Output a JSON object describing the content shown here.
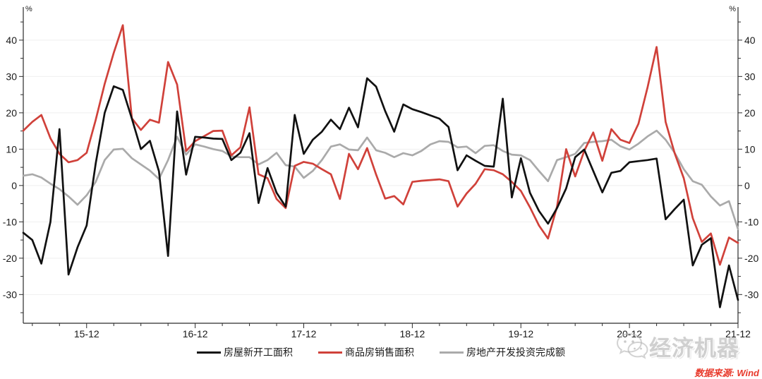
{
  "chart_data": {
    "type": "line",
    "title": "",
    "unit_label": "%",
    "grid": true,
    "legend_position": "bottom",
    "ylim": [
      -37.9,
      49.1
    ],
    "ytick_min": -30,
    "ytick_max": 40,
    "ytick_step": 10,
    "x_axis_labels": [
      "15-12",
      "16-12",
      "17-12",
      "18-12",
      "19-12",
      "20-12",
      "21-12"
    ],
    "x": [
      "15-05",
      "15-06",
      "15-07",
      "15-08",
      "15-09",
      "15-10",
      "15-11",
      "15-12",
      "16-01",
      "16-02",
      "16-03",
      "16-04",
      "16-05",
      "16-06",
      "16-07",
      "16-08",
      "16-09",
      "16-10",
      "16-11",
      "16-12",
      "17-01",
      "17-02",
      "17-03",
      "17-04",
      "17-05",
      "17-06",
      "17-07",
      "17-08",
      "17-09",
      "17-10",
      "17-11",
      "17-12",
      "18-01",
      "18-02",
      "18-03",
      "18-04",
      "18-05",
      "18-06",
      "18-07",
      "18-08",
      "18-09",
      "18-10",
      "18-11",
      "18-12",
      "19-01",
      "19-02",
      "19-03",
      "19-04",
      "19-05",
      "19-06",
      "19-07",
      "19-08",
      "19-09",
      "19-10",
      "19-11",
      "19-12",
      "20-01",
      "20-02",
      "20-03",
      "20-04",
      "20-05",
      "20-06",
      "20-07",
      "20-08",
      "20-09",
      "20-10",
      "20-11",
      "20-12",
      "21-01",
      "21-02",
      "21-03",
      "21-04",
      "21-05",
      "21-06",
      "21-07",
      "21-08",
      "21-09",
      "21-10",
      "21-11",
      "21-12"
    ],
    "series": [
      {
        "name": "房屋新开工面积",
        "color": "#111111",
        "values": [
          -13,
          -15,
          -21.5,
          -10,
          15.5,
          -24.5,
          -17,
          -11,
          6,
          20,
          27.3,
          26.3,
          18.4,
          10,
          12.3,
          3.9,
          -19.4,
          20.4,
          3,
          13.4,
          13.2,
          12.9,
          12.8,
          7,
          9,
          14.4,
          -4.8,
          4.8,
          -2,
          -5.8,
          19.4,
          8.7,
          12.6,
          14.8,
          18.1,
          15.5,
          21.4,
          16,
          29.5,
          27.2,
          20.5,
          14.8,
          22.3,
          21,
          20.2,
          19.3,
          18.4,
          16.1,
          4.2,
          8.3,
          6.8,
          5.4,
          5.2,
          23.9,
          -3.3,
          7.5,
          -2,
          -7,
          -10.5,
          -6.2,
          -0.8,
          7.8,
          9.9,
          4,
          -1.9,
          3.5,
          4,
          6.4,
          6.7,
          7,
          7.4,
          -9.3,
          -6.5,
          -3.9,
          -22,
          -16.3,
          -14.5,
          -33.5,
          -22,
          -31.5
        ]
      },
      {
        "name": "商品房销售面积",
        "color": "#d0413a",
        "values": [
          15.1,
          17.5,
          19.4,
          13,
          8.7,
          6.4,
          7,
          9,
          18,
          28,
          36.5,
          44.1,
          18.5,
          15.3,
          18.1,
          17.3,
          34,
          27.8,
          9.5,
          12.2,
          13.6,
          15,
          15.1,
          8.3,
          10.5,
          21.5,
          3.1,
          2,
          -3.7,
          -6.2,
          5.4,
          6.5,
          6,
          4.5,
          3.1,
          -3.7,
          8.7,
          4.5,
          10.3,
          3,
          -3.6,
          -2.9,
          -5.2,
          1,
          1.3,
          1.5,
          1.7,
          1.2,
          -5.8,
          -2.2,
          0.5,
          4.5,
          4.2,
          3.1,
          1,
          -1.5,
          -6,
          -11,
          -14.6,
          -5.8,
          10,
          2.5,
          9.5,
          14.6,
          6.8,
          15.5,
          12.6,
          11.7,
          17,
          27,
          38.1,
          17.5,
          8.9,
          2,
          -9,
          -15.5,
          -13.2,
          -21.8,
          -14.3,
          -15.8
        ]
      },
      {
        "name": "房地产开发投资完成额",
        "color": "#aaaaaa",
        "values": [
          2.7,
          3.1,
          2.2,
          0.5,
          -1,
          -3,
          -5.3,
          -2.7,
          1,
          7,
          9.9,
          10.1,
          7.5,
          5.8,
          4.1,
          1.8,
          7,
          13.4,
          8.5,
          11.3,
          10.7,
          10,
          9.5,
          8,
          7.8,
          7.8,
          5.8,
          7,
          9,
          5.6,
          5.2,
          2.1,
          4,
          7,
          10.7,
          11.3,
          9.9,
          9.7,
          13.2,
          9.7,
          9,
          7.8,
          8.9,
          8.3,
          9.5,
          11.3,
          12.2,
          12,
          10.5,
          10.7,
          8.9,
          10.9,
          11.1,
          9.5,
          8.5,
          8.3,
          7,
          4,
          1.2,
          7,
          7.8,
          8.7,
          11.7,
          12,
          12.2,
          12.6,
          10.8,
          9.9,
          11.5,
          13.5,
          15.1,
          12.6,
          9,
          4.5,
          1.2,
          0.2,
          -3,
          -5.5,
          -4.3,
          -12
        ]
      }
    ]
  },
  "watermark": {
    "brand": "经济机器",
    "icon": "wechat-icon"
  },
  "source_note": "数据来源: Wind"
}
